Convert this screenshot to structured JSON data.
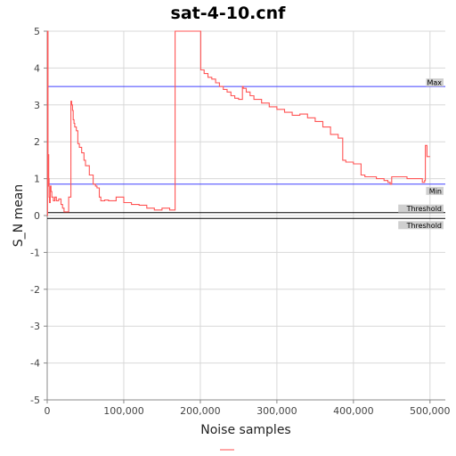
{
  "chart_data": {
    "type": "line",
    "title": "sat-4-10.cnf",
    "xlabel": "Noise samples",
    "ylabel": "S_N mean",
    "xlim": [
      0,
      520000
    ],
    "ylim": [
      -5,
      5
    ],
    "x_ticks": [
      0,
      100000,
      200000,
      300000,
      400000,
      500000
    ],
    "x_tick_labels": [
      "0",
      "100,000",
      "200,000",
      "300,000",
      "400,000",
      "500,000"
    ],
    "y_ticks": [
      -5,
      -4,
      -3,
      -2,
      -1,
      0,
      1,
      2,
      3,
      4,
      5
    ],
    "y_tick_labels": [
      "-5",
      "-4",
      "-3",
      "-2",
      "-1",
      "0",
      "1",
      "2",
      "3",
      "4",
      "5"
    ],
    "grid": true,
    "legend": "bottom",
    "markers": [
      {
        "label": "Max",
        "value": 3.5,
        "color": "#4040ff"
      },
      {
        "label": "Min",
        "value": 0.85,
        "color": "#4040ff"
      },
      {
        "label": "Threshold",
        "value": 0.08,
        "color": "#000000"
      },
      {
        "label": "Threshold",
        "value": -0.08,
        "color": "#000000"
      }
    ],
    "series": [
      {
        "color": "#ff5555",
        "x": [
          0,
          500,
          1000,
          1500,
          2000,
          2500,
          3000,
          4000,
          5000,
          6000,
          8000,
          10000,
          12000,
          15000,
          18000,
          20000,
          22000,
          25000,
          28000,
          30000,
          31000,
          32000,
          33000,
          34000,
          35000,
          36000,
          38000,
          40000,
          42000,
          45000,
          48000,
          50000,
          55000,
          60000,
          63000,
          65000,
          68000,
          70000,
          75000,
          80000,
          90000,
          100000,
          110000,
          120000,
          130000,
          140000,
          150000,
          160000,
          166000,
          167000,
          175000,
          185000,
          195000,
          200000,
          200500,
          205000,
          210000,
          215000,
          220000,
          225000,
          230000,
          235000,
          240000,
          245000,
          250000,
          255000,
          256000,
          260000,
          265000,
          270000,
          280000,
          290000,
          300000,
          310000,
          320000,
          330000,
          340000,
          350000,
          360000,
          370000,
          380000,
          385000,
          386000,
          390000,
          400000,
          410000,
          415000,
          420000,
          430000,
          440000,
          445000,
          448000,
          450000,
          460000,
          470000,
          480000,
          490000,
          493000,
          494000,
          496000,
          500000
        ],
        "values": [
          0,
          5,
          0.8,
          1.65,
          1.0,
          0.5,
          0.35,
          0.8,
          0.65,
          0.5,
          0.4,
          0.5,
          0.4,
          0.45,
          0.3,
          0.2,
          0.1,
          0.1,
          0.5,
          0.5,
          3.1,
          3.0,
          2.85,
          2.6,
          2.5,
          2.4,
          2.3,
          1.95,
          1.85,
          1.7,
          1.5,
          1.35,
          1.1,
          0.85,
          0.8,
          0.75,
          0.5,
          0.4,
          0.42,
          0.4,
          0.5,
          0.35,
          0.3,
          0.28,
          0.2,
          0.15,
          0.2,
          0.15,
          0.15,
          5,
          5,
          5,
          5,
          5,
          3.95,
          3.85,
          3.75,
          3.7,
          3.6,
          3.5,
          3.42,
          3.35,
          3.25,
          3.18,
          3.15,
          3.5,
          3.45,
          3.35,
          3.25,
          3.15,
          3.05,
          2.95,
          2.88,
          2.8,
          2.72,
          2.75,
          2.65,
          2.55,
          2.4,
          2.2,
          2.1,
          2.1,
          1.5,
          1.45,
          1.4,
          1.1,
          1.05,
          1.05,
          1.0,
          0.95,
          0.9,
          0.85,
          1.05,
          1.05,
          1.0,
          1.0,
          0.9,
          0.95,
          1.9,
          1.6,
          1.6
        ]
      }
    ]
  }
}
